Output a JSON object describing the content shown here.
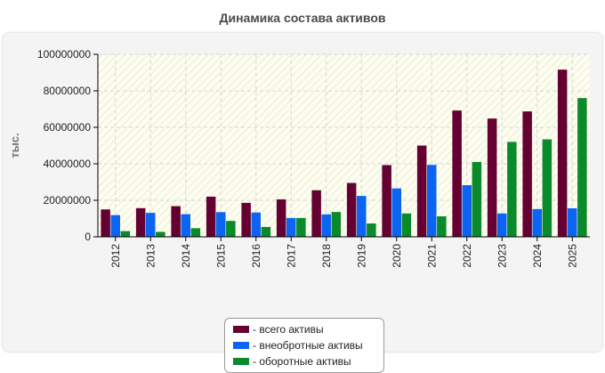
{
  "colors": {
    "total": "#640032",
    "noncurrent": "#0b64f2",
    "current": "#0a8a2a",
    "panel_bg": "#f4f4f4",
    "plot_bg": "#fdfdf0"
  },
  "chart_data": {
    "type": "bar",
    "title": "Динамика состава активов",
    "ylabel": "тыс.",
    "xlabel": "",
    "ylim": [
      0,
      100000000
    ],
    "yticks": [
      "0",
      "20000000",
      "40000000",
      "60000000",
      "80000000",
      "100000000"
    ],
    "grid": true,
    "legend_position": "bottom-center",
    "categories": [
      "2012",
      "2013",
      "2014",
      "2015",
      "2016",
      "2017",
      "2018",
      "2019",
      "2020",
      "2021",
      "2022",
      "2023",
      "2024",
      "2025"
    ],
    "series": [
      {
        "name": "- всего активы",
        "color_key": "total",
        "values": [
          15000000,
          15700000,
          16800000,
          22000000,
          18600000,
          20500000,
          25500000,
          29500000,
          39300000,
          50000000,
          69200000,
          64800000,
          68700000,
          91600000
        ]
      },
      {
        "name": "- внеобротные активы",
        "color_key": "noncurrent",
        "values": [
          11900000,
          13100000,
          12400000,
          13500000,
          13300000,
          10300000,
          12300000,
          22400000,
          26500000,
          39400000,
          28300000,
          12800000,
          15200000,
          15600000
        ]
      },
      {
        "name": "- оборотные активы",
        "color_key": "current",
        "values": [
          3100000,
          2700000,
          4700000,
          8700000,
          5400000,
          10300000,
          13600000,
          7300000,
          12800000,
          11200000,
          41000000,
          52000000,
          53400000,
          76000000
        ]
      }
    ]
  }
}
